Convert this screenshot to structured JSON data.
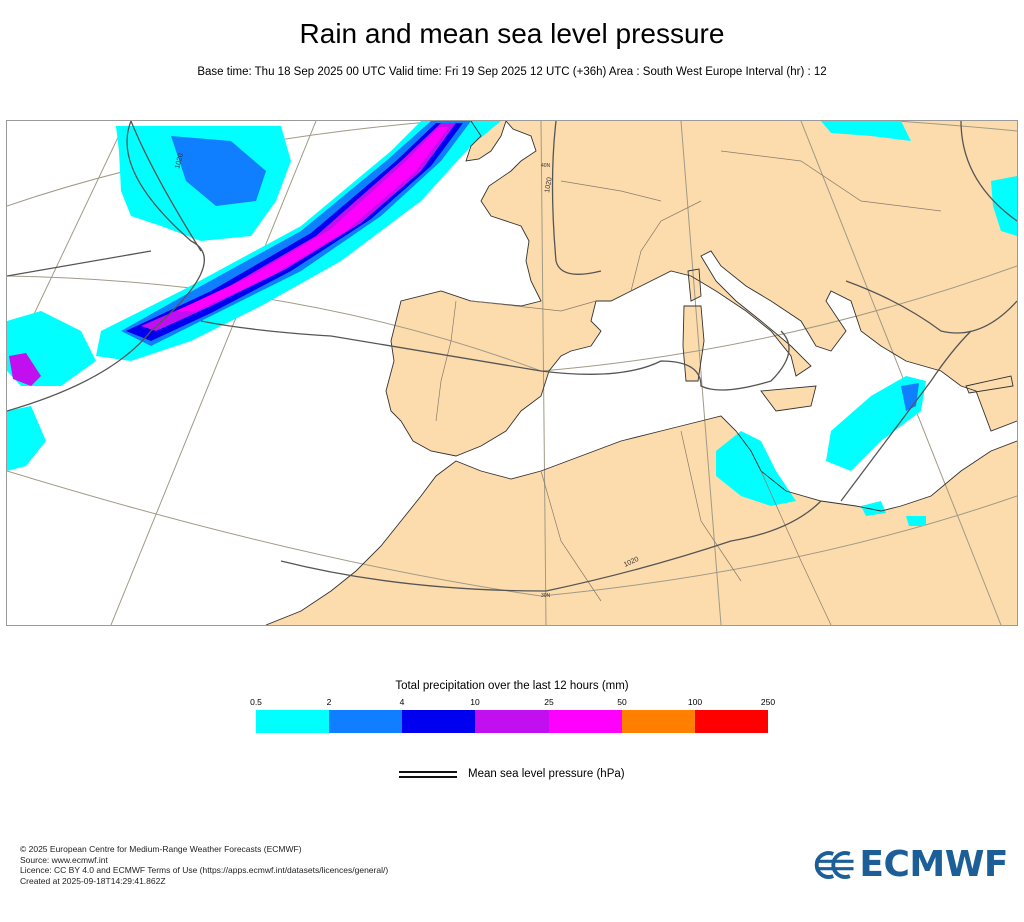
{
  "header": {
    "title": "Rain and mean sea level pressure",
    "subtitle": "Base time: Thu 18 Sep 2025 00 UTC Valid time: Fri 19 Sep 2025 12 UTC (+36h) Area : South West Europe Interval (hr) : 12"
  },
  "map": {
    "isobar_labels": [
      "1020",
      "1020",
      "1020"
    ],
    "graticule_labels": [
      "40N",
      "30N"
    ],
    "land_color": "#fcdcad",
    "sea_color": "#ffffff",
    "coast_color": "#333333",
    "isobar_color": "#555555",
    "graticule_color": "#a09a86"
  },
  "legend": {
    "title": "Total precipitation over the last 12 hours (mm)",
    "ticks": [
      "0.5",
      "2",
      "4",
      "10",
      "25",
      "50",
      "100",
      "250"
    ],
    "colors": [
      "#00ffff",
      "#0f7fff",
      "#0000f0",
      "#c20ff0",
      "#ff00ff",
      "#ff8000",
      "#ff0000"
    ],
    "mslp_label": "Mean sea level pressure (hPa)"
  },
  "footer": {
    "lines": [
      "© 2025 European Centre for Medium-Range Weather Forecasts (ECMWF)",
      "Source: www.ecmwf.int",
      "Licence: CC BY 4.0 and ECMWF Terms of Use (https://apps.ecmwf.int/datasets/licences/general/)",
      "Created at 2025-09-18T14:29:41.862Z"
    ],
    "logo_text": "ECMWF",
    "logo_color": "#1c5f98"
  }
}
